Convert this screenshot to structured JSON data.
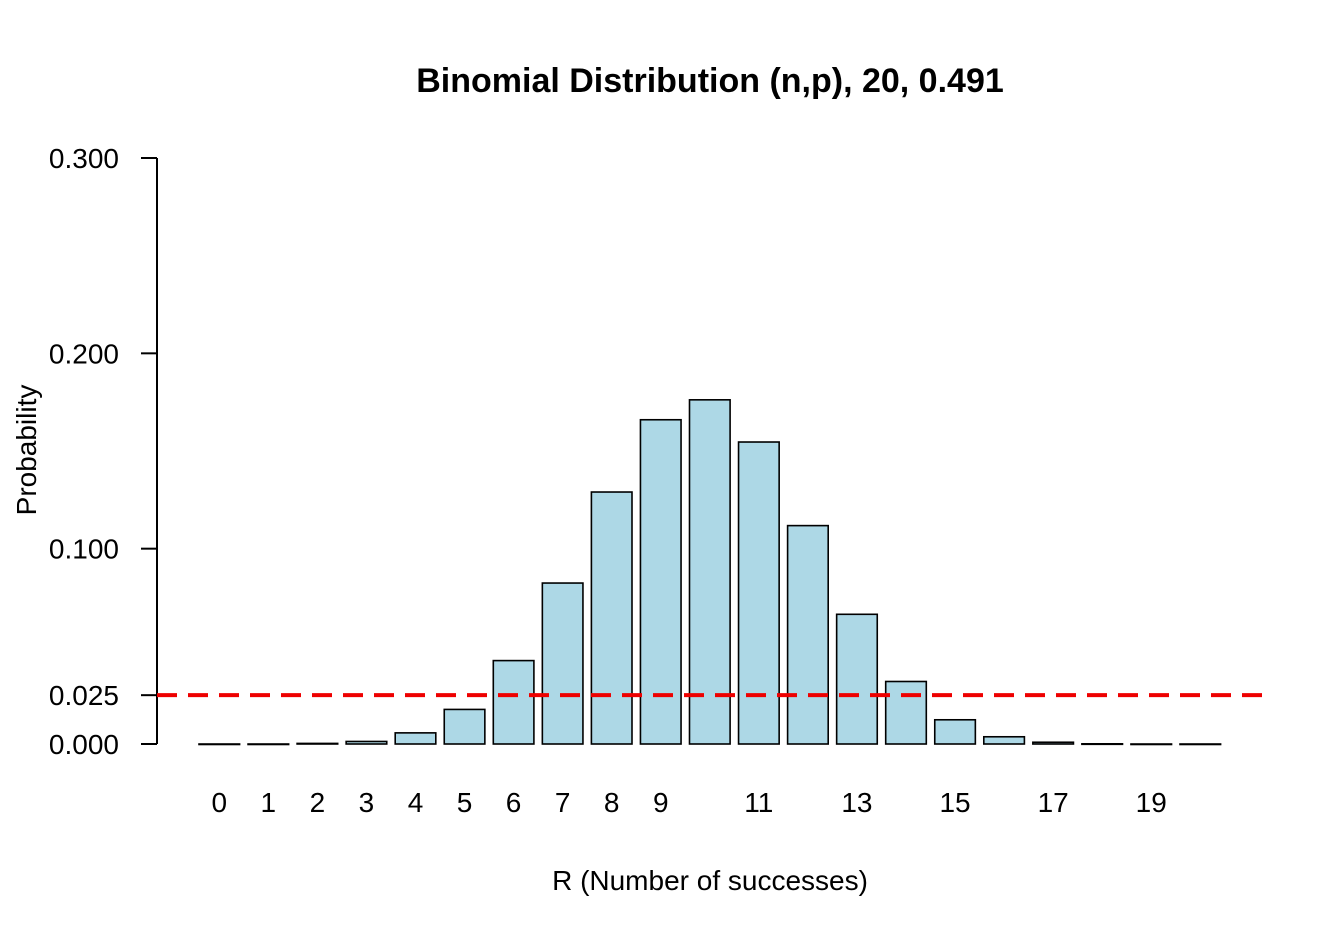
{
  "chart_data": {
    "type": "bar",
    "title": "Binomial Distribution (n,p), 20, 0.491",
    "xlabel": "R (Number of successes)",
    "ylabel": "Probability",
    "ylim": [
      0,
      0.3
    ],
    "y_ticks": [
      "0.000",
      "0.025",
      "0.100",
      "0.200",
      "0.300"
    ],
    "y_tick_values": [
      0,
      0.025,
      0.1,
      0.2,
      0.3
    ],
    "categories": [
      "0",
      "1",
      "2",
      "3",
      "4",
      "5",
      "6",
      "7",
      "8",
      "9",
      "10",
      "11",
      "12",
      "13",
      "14",
      "15",
      "16",
      "17",
      "18",
      "19",
      "20"
    ],
    "x_tick_labels": [
      "0",
      "1",
      "2",
      "3",
      "4",
      "5",
      "6",
      "7",
      "8",
      "9",
      "",
      "11",
      "",
      "13",
      "",
      "15",
      "",
      "17",
      "",
      "19",
      ""
    ],
    "values": [
      0.0,
      0.0,
      0.0003,
      0.0013,
      0.0057,
      0.0177,
      0.0427,
      0.0824,
      0.129,
      0.166,
      0.1762,
      0.1546,
      0.1118,
      0.0664,
      0.032,
      0.0124,
      0.0037,
      0.0009,
      0.0001,
      0.0,
      0.0
    ],
    "bar_color": "#ADD8E6",
    "reference_line": {
      "value": 0.025,
      "color": "#EE0000",
      "style": "dashed"
    },
    "grid": false
  }
}
